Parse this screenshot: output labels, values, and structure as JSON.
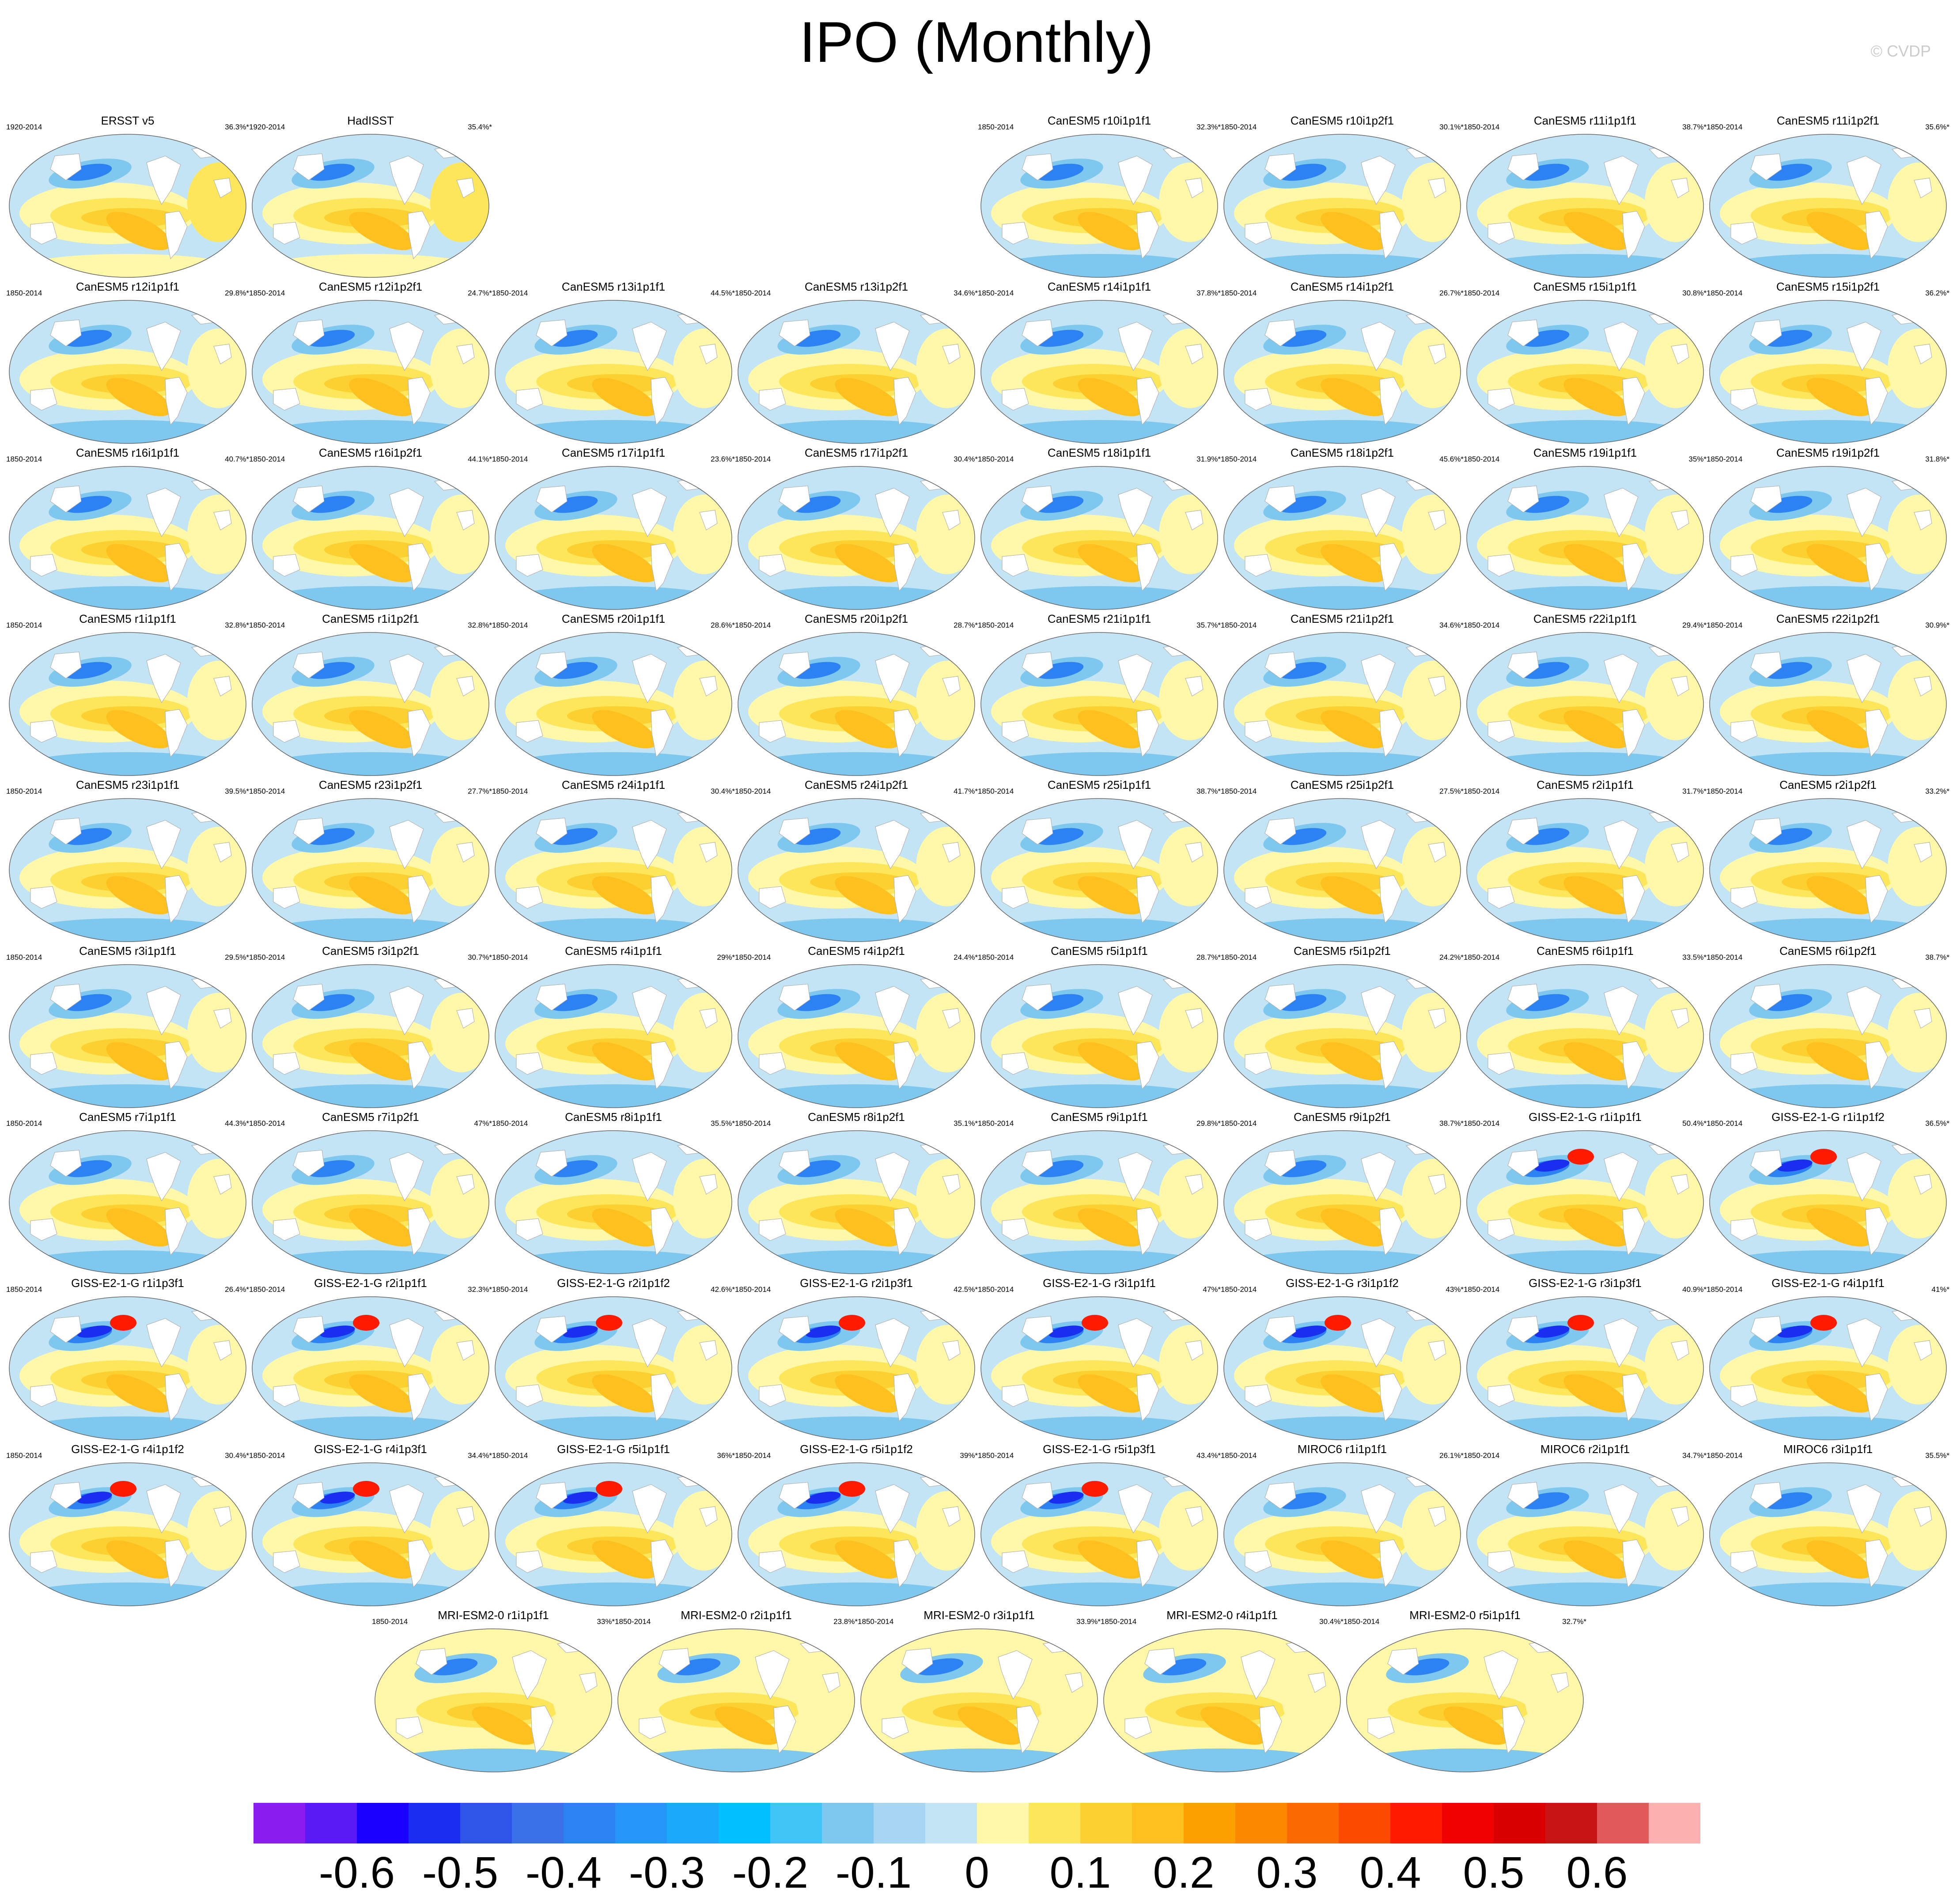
{
  "title": "IPO (Monthly)",
  "watermark": "© CVDP",
  "chart_data": {
    "type": "heatmap",
    "title": "IPO (Monthly)",
    "panels": [
      {
        "name": "ERSST v5",
        "period": "1920-2014",
        "pct": "36.3%*"
      },
      {
        "name": "HadISST",
        "period": "1920-2014",
        "pct": "35.4%*"
      },
      {
        "name": "CanESM5 r10i1p1f1",
        "period": "1850-2014",
        "pct": "32.3%*"
      },
      {
        "name": "CanESM5 r10i1p2f1",
        "period": "1850-2014",
        "pct": "30.1%*"
      },
      {
        "name": "CanESM5 r11i1p1f1",
        "period": "1850-2014",
        "pct": "38.7%*"
      },
      {
        "name": "CanESM5 r11i1p2f1",
        "period": "1850-2014",
        "pct": "35.6%*"
      },
      {
        "name": "CanESM5 r12i1p1f1",
        "period": "1850-2014",
        "pct": "29.8%*"
      },
      {
        "name": "CanESM5 r12i1p2f1",
        "period": "1850-2014",
        "pct": "24.7%*"
      },
      {
        "name": "CanESM5 r13i1p1f1",
        "period": "1850-2014",
        "pct": "44.5%*"
      },
      {
        "name": "CanESM5 r13i1p2f1",
        "period": "1850-2014",
        "pct": "34.6%*"
      },
      {
        "name": "CanESM5 r14i1p1f1",
        "period": "1850-2014",
        "pct": "37.8%*"
      },
      {
        "name": "CanESM5 r14i1p2f1",
        "period": "1850-2014",
        "pct": "26.7%*"
      },
      {
        "name": "CanESM5 r15i1p1f1",
        "period": "1850-2014",
        "pct": "30.8%*"
      },
      {
        "name": "CanESM5 r15i1p2f1",
        "period": "1850-2014",
        "pct": "36.2%*"
      },
      {
        "name": "CanESM5 r16i1p1f1",
        "period": "1850-2014",
        "pct": "40.7%*"
      },
      {
        "name": "CanESM5 r16i1p2f1",
        "period": "1850-2014",
        "pct": "44.1%*"
      },
      {
        "name": "CanESM5 r17i1p1f1",
        "period": "1850-2014",
        "pct": "23.6%*"
      },
      {
        "name": "CanESM5 r17i1p2f1",
        "period": "1850-2014",
        "pct": "30.4%*"
      },
      {
        "name": "CanESM5 r18i1p1f1",
        "period": "1850-2014",
        "pct": "31.9%*"
      },
      {
        "name": "CanESM5 r18i1p2f1",
        "period": "1850-2014",
        "pct": "45.6%*"
      },
      {
        "name": "CanESM5 r19i1p1f1",
        "period": "1850-2014",
        "pct": "35%*"
      },
      {
        "name": "CanESM5 r19i1p2f1",
        "period": "1850-2014",
        "pct": "31.8%*"
      },
      {
        "name": "CanESM5 r1i1p1f1",
        "period": "1850-2014",
        "pct": "32.8%*"
      },
      {
        "name": "CanESM5 r1i1p2f1",
        "period": "1850-2014",
        "pct": "32.8%*"
      },
      {
        "name": "CanESM5 r20i1p1f1",
        "period": "1850-2014",
        "pct": "28.6%*"
      },
      {
        "name": "CanESM5 r20i1p2f1",
        "period": "1850-2014",
        "pct": "28.7%*"
      },
      {
        "name": "CanESM5 r21i1p1f1",
        "period": "1850-2014",
        "pct": "35.7%*"
      },
      {
        "name": "CanESM5 r21i1p2f1",
        "period": "1850-2014",
        "pct": "34.6%*"
      },
      {
        "name": "CanESM5 r22i1p1f1",
        "period": "1850-2014",
        "pct": "29.4%*"
      },
      {
        "name": "CanESM5 r22i1p2f1",
        "period": "1850-2014",
        "pct": "30.9%*"
      },
      {
        "name": "CanESM5 r23i1p1f1",
        "period": "1850-2014",
        "pct": "39.5%*"
      },
      {
        "name": "CanESM5 r23i1p2f1",
        "period": "1850-2014",
        "pct": "27.7%*"
      },
      {
        "name": "CanESM5 r24i1p1f1",
        "period": "1850-2014",
        "pct": "30.4%*"
      },
      {
        "name": "CanESM5 r24i1p2f1",
        "period": "1850-2014",
        "pct": "41.7%*"
      },
      {
        "name": "CanESM5 r25i1p1f1",
        "period": "1850-2014",
        "pct": "38.7%*"
      },
      {
        "name": "CanESM5 r25i1p2f1",
        "period": "1850-2014",
        "pct": "27.5%*"
      },
      {
        "name": "CanESM5 r2i1p1f1",
        "period": "1850-2014",
        "pct": "31.7%*"
      },
      {
        "name": "CanESM5 r2i1p2f1",
        "period": "1850-2014",
        "pct": "33.2%*"
      },
      {
        "name": "CanESM5 r3i1p1f1",
        "period": "1850-2014",
        "pct": "29.5%*"
      },
      {
        "name": "CanESM5 r3i1p2f1",
        "period": "1850-2014",
        "pct": "30.7%*"
      },
      {
        "name": "CanESM5 r4i1p1f1",
        "period": "1850-2014",
        "pct": "29%*"
      },
      {
        "name": "CanESM5 r4i1p2f1",
        "period": "1850-2014",
        "pct": "24.4%*"
      },
      {
        "name": "CanESM5 r5i1p1f1",
        "period": "1850-2014",
        "pct": "28.7%*"
      },
      {
        "name": "CanESM5 r5i1p2f1",
        "period": "1850-2014",
        "pct": "24.2%*"
      },
      {
        "name": "CanESM5 r6i1p1f1",
        "period": "1850-2014",
        "pct": "33.5%*"
      },
      {
        "name": "CanESM5 r6i1p2f1",
        "period": "1850-2014",
        "pct": "38.7%*"
      },
      {
        "name": "CanESM5 r7i1p1f1",
        "period": "1850-2014",
        "pct": "44.3%*"
      },
      {
        "name": "CanESM5 r7i1p2f1",
        "period": "1850-2014",
        "pct": "47%*"
      },
      {
        "name": "CanESM5 r8i1p1f1",
        "period": "1850-2014",
        "pct": "35.5%*"
      },
      {
        "name": "CanESM5 r8i1p2f1",
        "period": "1850-2014",
        "pct": "35.1%*"
      },
      {
        "name": "CanESM5 r9i1p1f1",
        "period": "1850-2014",
        "pct": "29.8%*"
      },
      {
        "name": "CanESM5 r9i1p2f1",
        "period": "1850-2014",
        "pct": "38.7%*"
      },
      {
        "name": "GISS-E2-1-G r1i1p1f1",
        "period": "1850-2014",
        "pct": "50.4%*"
      },
      {
        "name": "GISS-E2-1-G r1i1p1f2",
        "period": "1850-2014",
        "pct": "36.5%*"
      },
      {
        "name": "GISS-E2-1-G r1i1p3f1",
        "period": "1850-2014",
        "pct": "26.4%*"
      },
      {
        "name": "GISS-E2-1-G r2i1p1f1",
        "period": "1850-2014",
        "pct": "32.3%*"
      },
      {
        "name": "GISS-E2-1-G r2i1p1f2",
        "period": "1850-2014",
        "pct": "42.6%*"
      },
      {
        "name": "GISS-E2-1-G r2i1p3f1",
        "period": "1850-2014",
        "pct": "42.5%*"
      },
      {
        "name": "GISS-E2-1-G r3i1p1f1",
        "period": "1850-2014",
        "pct": "47%*"
      },
      {
        "name": "GISS-E2-1-G r3i1p1f2",
        "period": "1850-2014",
        "pct": "43%*"
      },
      {
        "name": "GISS-E2-1-G r3i1p3f1",
        "period": "1850-2014",
        "pct": "40.9%*"
      },
      {
        "name": "GISS-E2-1-G r4i1p1f1",
        "period": "1850-2014",
        "pct": "41%*"
      },
      {
        "name": "GISS-E2-1-G r4i1p1f2",
        "period": "1850-2014",
        "pct": "30.4%*"
      },
      {
        "name": "GISS-E2-1-G r4i1p3f1",
        "period": "1850-2014",
        "pct": "34.4%*"
      },
      {
        "name": "GISS-E2-1-G r5i1p1f1",
        "period": "1850-2014",
        "pct": "36%*"
      },
      {
        "name": "GISS-E2-1-G r5i1p1f2",
        "period": "1850-2014",
        "pct": "39%*"
      },
      {
        "name": "GISS-E2-1-G r5i1p3f1",
        "period": "1850-2014",
        "pct": "43.4%*"
      },
      {
        "name": "MIROC6 r1i1p1f1",
        "period": "1850-2014",
        "pct": "26.1%*"
      },
      {
        "name": "MIROC6 r2i1p1f1",
        "period": "1850-2014",
        "pct": "34.7%*"
      },
      {
        "name": "MIROC6 r3i1p1f1",
        "period": "1850-2014",
        "pct": "35.5%*"
      },
      {
        "name": "MRI-ESM2-0 r1i1p1f1",
        "period": "1850-2014",
        "pct": "33%*"
      },
      {
        "name": "MRI-ESM2-0 r2i1p1f1",
        "period": "1850-2014",
        "pct": "23.8%*"
      },
      {
        "name": "MRI-ESM2-0 r3i1p1f1",
        "period": "1850-2014",
        "pct": "33.9%*"
      },
      {
        "name": "MRI-ESM2-0 r4i1p1f1",
        "period": "1850-2014",
        "pct": "30.4%*"
      },
      {
        "name": "MRI-ESM2-0 r5i1p1f1",
        "period": "1850-2014",
        "pct": "32.7%*"
      }
    ],
    "colorbar": {
      "colors": [
        "#8a1cf0",
        "#5a1af5",
        "#1a00ff",
        "#1a2ef0",
        "#2f55e8",
        "#3a70e8",
        "#2c82f2",
        "#2596fa",
        "#1aa9fb",
        "#00c0ff",
        "#40c4f6",
        "#7ec8ef",
        "#a6d6f2",
        "#c2e4f4",
        "#fff8a8",
        "#fde65a",
        "#fdd032",
        "#fdc01e",
        "#fca000",
        "#fc8800",
        "#fb6a00",
        "#fc4a00",
        "#ff1a00",
        "#f00000",
        "#d80000",
        "#c81414",
        "#e05a5a",
        "#fdb0b0"
      ],
      "tick_labels": [
        "-0.6",
        "-0.5",
        "-0.4",
        "-0.3",
        "-0.2",
        "-0.1",
        "0",
        "0.1",
        "0.2",
        "0.3",
        "0.4",
        "0.5",
        "0.6"
      ],
      "tick_values": [
        -0.6,
        -0.5,
        -0.4,
        -0.3,
        -0.2,
        -0.1,
        0,
        0.1,
        0.2,
        0.3,
        0.4,
        0.5,
        0.6
      ],
      "range": [
        -0.7,
        0.7
      ]
    }
  }
}
